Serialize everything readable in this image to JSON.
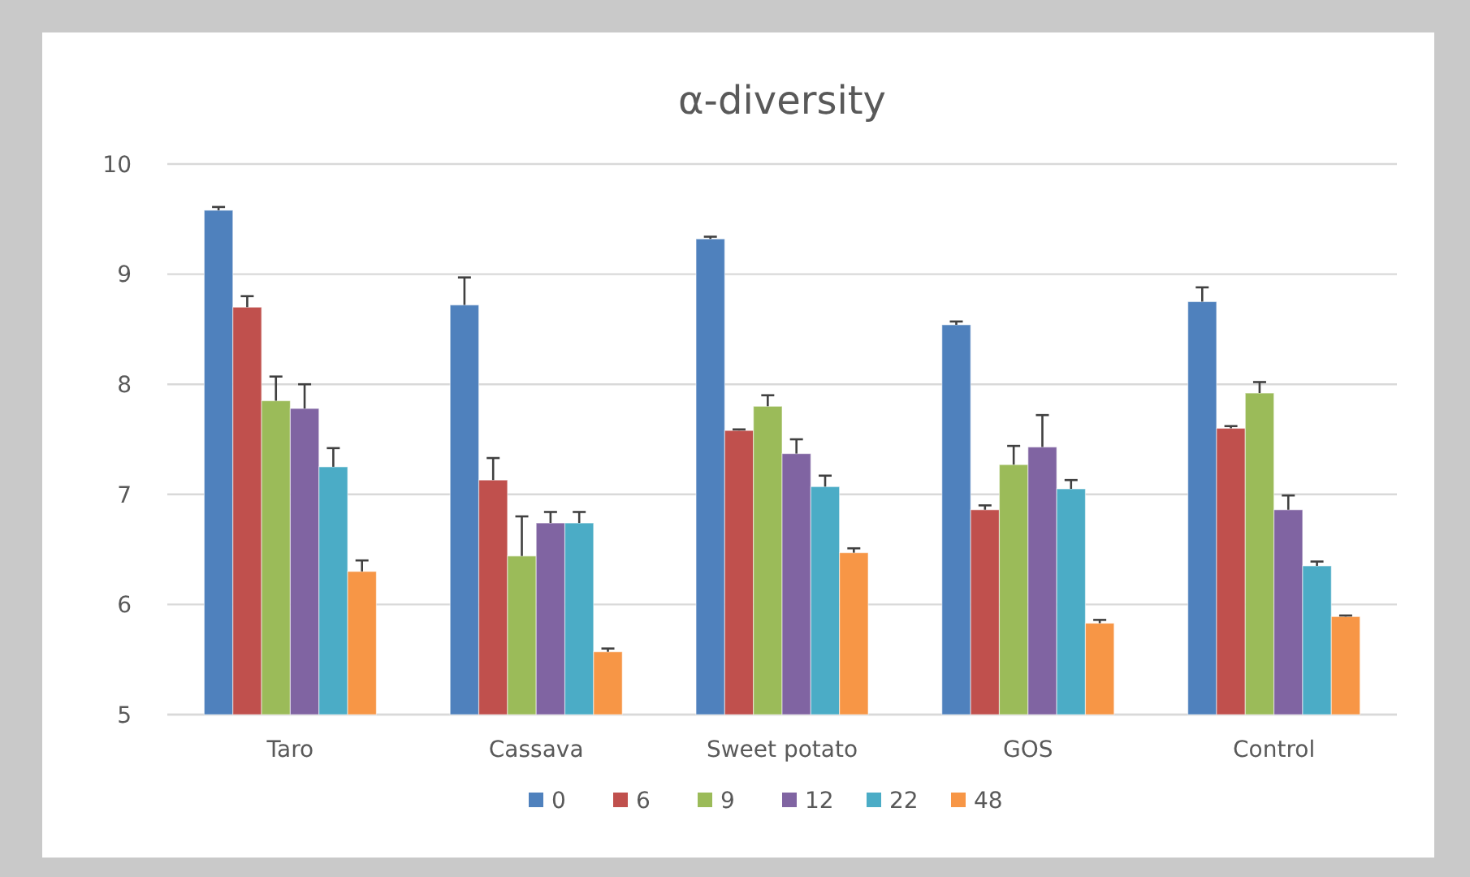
{
  "chart_data": {
    "type": "bar",
    "title": "α-diversity",
    "categories": [
      "Taro",
      "Cassava",
      "Sweet potato",
      "GOS",
      "Control"
    ],
    "series": [
      {
        "name": "0",
        "color": "#4f81bd",
        "values": [
          9.58,
          8.72,
          9.32,
          8.54,
          8.75
        ],
        "errors": [
          [
            9.58,
            9.61
          ],
          [
            8.72,
            8.97
          ],
          [
            9.32,
            9.34
          ],
          [
            8.54,
            8.57
          ],
          [
            8.75,
            8.88
          ]
        ]
      },
      {
        "name": "6",
        "color": "#c0504d",
        "values": [
          8.7,
          7.13,
          7.58,
          6.86,
          7.6
        ],
        "errors": [
          [
            8.7,
            8.8
          ],
          [
            7.13,
            7.33
          ],
          [
            7.58,
            7.59
          ],
          [
            6.86,
            6.9
          ],
          [
            7.6,
            7.62
          ]
        ]
      },
      {
        "name": "9",
        "color": "#9bbb59",
        "values": [
          7.85,
          6.44,
          7.8,
          7.27,
          7.92
        ],
        "errors": [
          [
            7.85,
            8.07
          ],
          [
            6.44,
            6.8
          ],
          [
            7.8,
            7.9
          ],
          [
            7.27,
            7.44
          ],
          [
            7.92,
            8.02
          ]
        ]
      },
      {
        "name": "12",
        "color": "#8064a2",
        "values": [
          7.78,
          6.74,
          7.37,
          7.43,
          6.86
        ],
        "errors": [
          [
            7.78,
            8.0
          ],
          [
            6.74,
            6.84
          ],
          [
            7.37,
            7.5
          ],
          [
            7.43,
            7.72
          ],
          [
            6.86,
            6.99
          ]
        ]
      },
      {
        "name": "22",
        "color": "#4bacc6",
        "values": [
          7.25,
          6.74,
          7.07,
          7.05,
          6.35
        ],
        "errors": [
          [
            7.25,
            7.42
          ],
          [
            6.74,
            6.84
          ],
          [
            7.07,
            7.17
          ],
          [
            7.05,
            7.13
          ],
          [
            6.35,
            6.39
          ]
        ]
      },
      {
        "name": "48",
        "color": "#f79646",
        "values": [
          6.3,
          5.57,
          6.47,
          5.83,
          5.89
        ],
        "errors": [
          [
            6.3,
            6.4
          ],
          [
            5.57,
            5.6
          ],
          [
            6.47,
            6.51
          ],
          [
            5.83,
            5.86
          ],
          [
            5.89,
            5.9
          ]
        ]
      }
    ],
    "ylim": [
      5,
      10
    ],
    "yticks": [
      5,
      6,
      7,
      8,
      9,
      10
    ],
    "grid": "y",
    "legend": "bottom"
  }
}
